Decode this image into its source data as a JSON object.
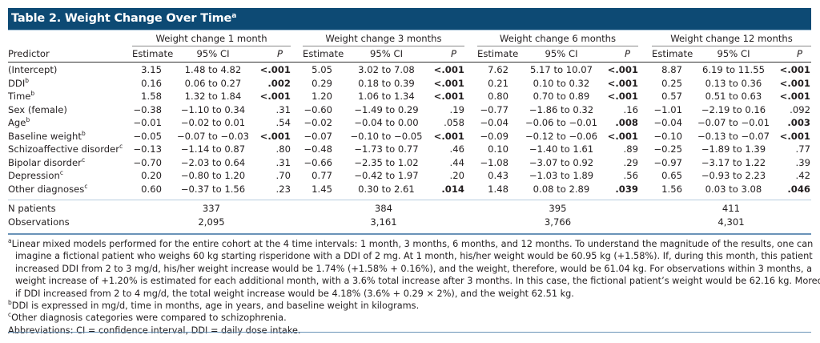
{
  "title": {
    "text": "Table 2. Weight Change Over Time",
    "sup": "a"
  },
  "colors": {
    "title_bar": "#0d4a74",
    "rule": "#6a93b8"
  },
  "groups": [
    "Weight change 1 month",
    "Weight change 3 months",
    "Weight change 6 months",
    "Weight change 12 months"
  ],
  "headers": {
    "predictor": "Predictor",
    "estimate": "Estimate",
    "ci": "95% CI",
    "p": "P"
  },
  "rows": [
    {
      "label": "(Intercept)",
      "sup": "",
      "vals": [
        [
          "3.15",
          "1.48 to 4.82",
          "<.001"
        ],
        [
          "5.05",
          "3.02 to 7.08",
          "<.001"
        ],
        [
          "7.62",
          "5.17 to 10.07",
          "<.001"
        ],
        [
          "8.87",
          "6.19 to 11.55",
          "<.001"
        ]
      ]
    },
    {
      "label": "DDI",
      "sup": "b",
      "vals": [
        [
          "0.16",
          "0.06 to 0.27",
          ".002"
        ],
        [
          "0.29",
          "0.18 to 0.39",
          "<.001"
        ],
        [
          "0.21",
          "0.10 to 0.32",
          "<.001"
        ],
        [
          "0.25",
          "0.13 to 0.36",
          "<.001"
        ]
      ]
    },
    {
      "label": "Time",
      "sup": "b",
      "vals": [
        [
          "1.58",
          "1.32 to 1.84",
          "<.001"
        ],
        [
          "1.20",
          "1.06 to 1.34",
          "<.001"
        ],
        [
          "0.80",
          "0.70 to 0.89",
          "<.001"
        ],
        [
          "0.57",
          "0.51 to 0.63",
          "<.001"
        ]
      ]
    },
    {
      "label": "Sex (female)",
      "sup": "",
      "vals": [
        [
          "−0.38",
          "−1.10 to 0.34",
          ".31"
        ],
        [
          "−0.60",
          "−1.49 to 0.29",
          ".19"
        ],
        [
          "−0.77",
          "−1.86 to 0.32",
          ".16"
        ],
        [
          "−1.01",
          "−2.19 to 0.16",
          ".092"
        ]
      ]
    },
    {
      "label": "Age",
      "sup": "b",
      "vals": [
        [
          "−0.01",
          "−0.02 to 0.01",
          ".54"
        ],
        [
          "−0.02",
          "−0.04 to 0.00",
          ".058"
        ],
        [
          "−0.04",
          "−0.06 to −0.01",
          ".008"
        ],
        [
          "−0.04",
          "−0.07 to −0.01",
          ".003"
        ]
      ]
    },
    {
      "label": "Baseline weight",
      "sup": "b",
      "vals": [
        [
          "−0.05",
          "−0.07 to −0.03",
          "<.001"
        ],
        [
          "−0.07",
          "−0.10 to −0.05",
          "<.001"
        ],
        [
          "−0.09",
          "−0.12 to −0.06",
          "<.001"
        ],
        [
          "−0.10",
          "−0.13 to −0.07",
          "<.001"
        ]
      ]
    },
    {
      "label": "Schizoaffective disorder",
      "sup": "c",
      "vals": [
        [
          "−0.13",
          "−1.14 to 0.87",
          ".80"
        ],
        [
          "−0.48",
          "−1.73 to 0.77",
          ".46"
        ],
        [
          "0.10",
          "−1.40 to 1.61",
          ".89"
        ],
        [
          "−0.25",
          "−1.89 to 1.39",
          ".77"
        ]
      ]
    },
    {
      "label": "Bipolar disorder",
      "sup": "c",
      "vals": [
        [
          "−0.70",
          "−2.03 to 0.64",
          ".31"
        ],
        [
          "−0.66",
          "−2.35 to 1.02",
          ".44"
        ],
        [
          "−1.08",
          "−3.07 to 0.92",
          ".29"
        ],
        [
          "−0.97",
          "−3.17 to 1.22",
          ".39"
        ]
      ]
    },
    {
      "label": "Depression",
      "sup": "c",
      "vals": [
        [
          "0.20",
          "−0.80 to 1.20",
          ".70"
        ],
        [
          "0.77",
          "−0.42 to 1.97",
          ".20"
        ],
        [
          "0.43",
          "−1.03 to 1.89",
          ".56"
        ],
        [
          "0.65",
          "−0.93 to 2.23",
          ".42"
        ]
      ]
    },
    {
      "label": "Other diagnoses",
      "sup": "c",
      "vals": [
        [
          "0.60",
          "−0.37 to 1.56",
          ".23"
        ],
        [
          "1.45",
          "0.30 to 2.61",
          ".014"
        ],
        [
          "1.48",
          "0.08 to 2.89",
          ".039"
        ],
        [
          "1.56",
          "0.03 to 3.08",
          ".046"
        ]
      ]
    }
  ],
  "summary": [
    {
      "label": "N patients",
      "vals": [
        "337",
        "384",
        "395",
        "411"
      ]
    },
    {
      "label": "Observations",
      "vals": [
        "2,095",
        "3,161",
        "3,766",
        "4,301"
      ]
    }
  ],
  "footnotes": {
    "a": {
      "mark": "a",
      "lines": [
        "Linear mixed models performed for the entire cohort at the 4 time intervals: 1 month, 3 months, 6 months, and 12 months. To understand the magnitude of the results, one can",
        "imagine a fictional patient who weighs 60 kg starting risperidone with a DDI of 2 mg. At 1 month, his/her weight would be 60.95 kg (+1.58%). If, during this month, this patient",
        "increased DDI from 2 to 3 mg/d, his/her weight increase would be 1.74% (+1.58% + 0.16%), and the weight, therefore, would be 61.04 kg. For observations within 3 months, a",
        "weight increase of +1.20% is estimated for each additional month, with a 3.6% total increase after 3 months. In this case, the fictional patient’s weight would be 62.16 kg. Moreover,",
        "if DDI increased from 2 to 4 mg/d, the total weight increase would be 4.18% (3.6% + 0.29 × 2%), and the weight 62.51 kg."
      ]
    },
    "b": {
      "mark": "b",
      "text": "DDI is expressed in mg/d, time in months, age in years, and baseline weight in kilograms."
    },
    "c": {
      "mark": "c",
      "text": "Other diagnosis categories were compared to schizophrenia."
    },
    "abbreviations": "Abbreviations: CI = confidence interval, DDI = daily dose intake."
  }
}
